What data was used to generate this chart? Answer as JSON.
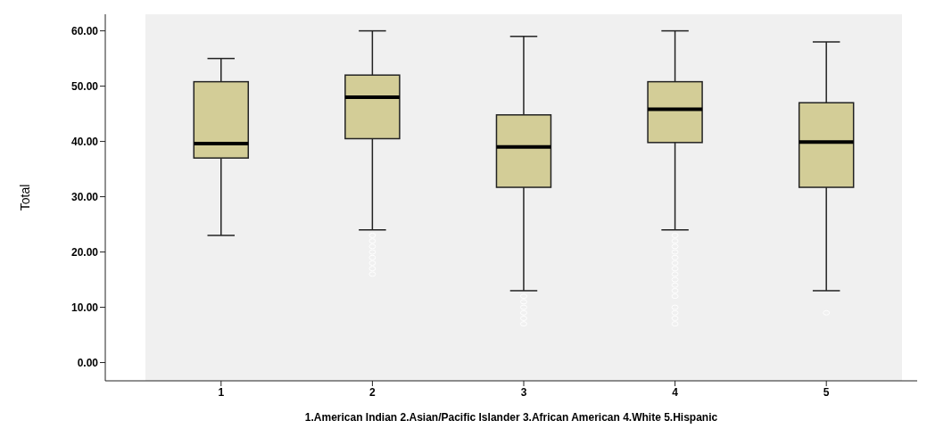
{
  "chart_data": {
    "type": "box",
    "xlabel": "1.American Indian 2.Asian/Pacific Islander 3.African American 4.White 5.Hispanic",
    "ylabel": "Total",
    "categories": [
      "1",
      "2",
      "3",
      "4",
      "5"
    ],
    "color": "#d3cd97",
    "boxes": [
      {
        "low": 23,
        "q1": 37,
        "median": 39.6,
        "q3": 50.8,
        "high": 55
      },
      {
        "low": 24,
        "q1": 40.5,
        "median": 48,
        "q3": 52,
        "high": 60,
        "outliers": [
          23,
          22,
          21,
          20,
          19,
          18,
          17,
          16
        ]
      },
      {
        "low": 13,
        "q1": 31.7,
        "median": 39,
        "q3": 44.8,
        "high": 59,
        "outliers": [
          12,
          11,
          10,
          9,
          8,
          7
        ]
      },
      {
        "low": 24,
        "q1": 39.8,
        "median": 45.8,
        "q3": 50.8,
        "high": 60,
        "outliers": [
          23,
          22,
          21,
          20,
          19,
          18,
          17,
          16,
          15,
          14,
          13,
          12,
          10,
          9,
          8,
          7
        ]
      },
      {
        "low": 13,
        "q1": 31.7,
        "median": 39.9,
        "q3": 47,
        "high": 58,
        "outliers": [
          9
        ]
      }
    ],
    "ylim": [
      -3.3,
      63
    ],
    "yticks": [
      {
        "value": 0,
        "label": "0.00"
      },
      {
        "value": 10,
        "label": "10.00"
      },
      {
        "value": 20,
        "label": "20.00"
      },
      {
        "value": 30,
        "label": "30.00"
      },
      {
        "value": 40,
        "label": "40.00"
      },
      {
        "value": 50,
        "label": "50.00"
      },
      {
        "value": 60,
        "label": "60.00"
      }
    ]
  }
}
